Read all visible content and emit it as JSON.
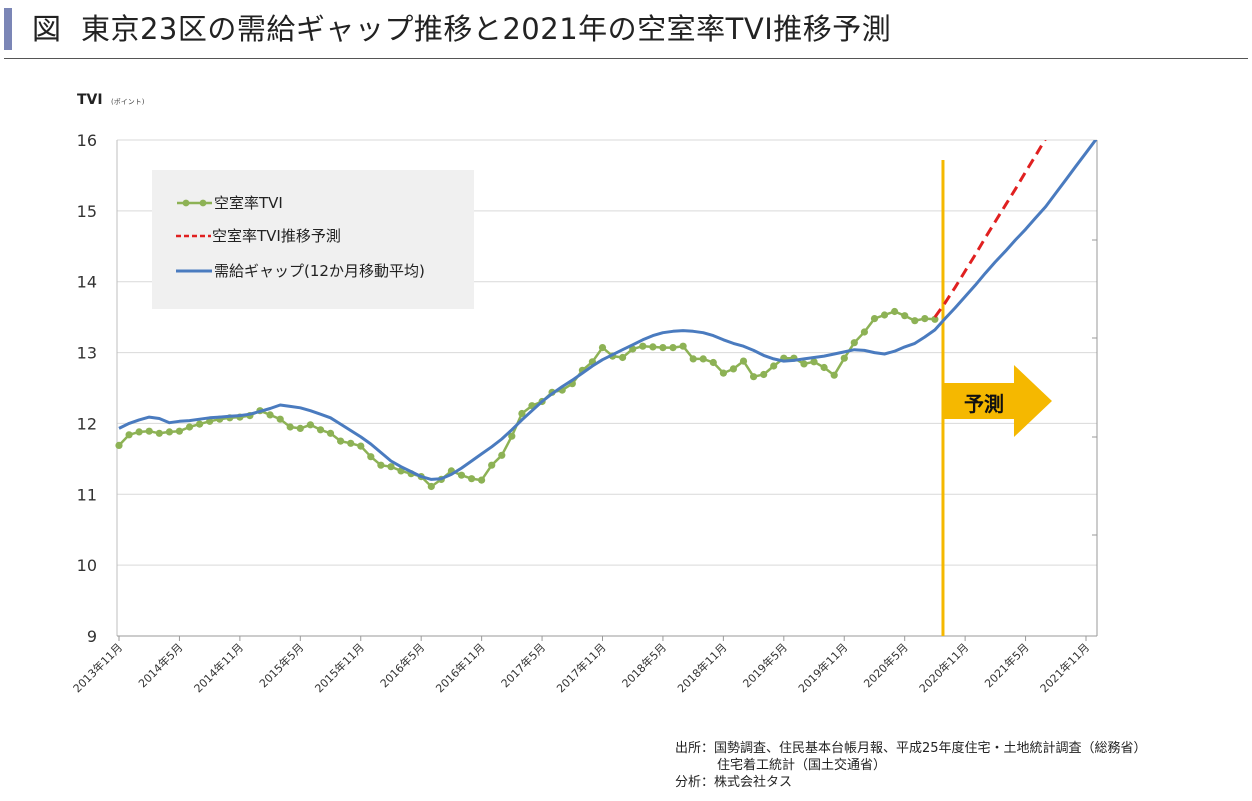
{
  "title": {
    "marker": "図",
    "text": "東京23区の需給ギャップ推移と2021年の空室率TVI推移予測"
  },
  "colors": {
    "tvi": "#8db255",
    "forecast": "#e02020",
    "gap": "#4a7bbf",
    "marker_line": "#f5b800",
    "arrow": "#f5b800",
    "legend_bg": "#f0f0f0",
    "grid": "#d9d9d9",
    "title_accent": "#7b86b6"
  },
  "chart_data": {
    "type": "line",
    "ylabel": "TVI",
    "ylabel_unit": "(ポイント)",
    "ylim": [
      9,
      16
    ],
    "y_ticks": [
      "16",
      "15",
      "14",
      "13",
      "12",
      "11",
      "10",
      "9"
    ],
    "x_ticks": [
      "2013年11月",
      "2014年5月",
      "2014年11月",
      "2015年5月",
      "2015年11月",
      "2016年5月",
      "2016年11月",
      "2017年5月",
      "2017年11月",
      "2018年5月",
      "2018年11月",
      "2019年5月",
      "2019年11月",
      "2020年5月",
      "2020年11月",
      "2021年5月",
      "2021年11月"
    ],
    "x_start": "2013年11月",
    "x_end": "2021年11月",
    "grid": "horizontal",
    "legend_position": "top-left",
    "forecast_start": "2020年9月",
    "forecast_label": "予測",
    "series": [
      {
        "name": "空室率TVI",
        "style": "line-with-markers",
        "values": [
          11.69,
          11.84,
          11.88,
          11.89,
          11.86,
          11.88,
          11.89,
          11.95,
          11.99,
          12.03,
          12.06,
          12.08,
          12.09,
          12.11,
          12.18,
          12.12,
          12.06,
          11.95,
          11.93,
          11.98,
          11.91,
          11.86,
          11.75,
          11.72,
          11.68,
          11.53,
          11.41,
          11.39,
          11.33,
          11.29,
          11.25,
          11.11,
          11.21,
          11.33,
          11.27,
          11.22,
          11.2,
          11.41,
          11.55,
          11.82,
          12.14,
          12.25,
          12.31,
          12.44,
          12.47,
          12.56,
          12.75,
          12.87,
          13.07,
          12.95,
          12.93,
          13.05,
          13.09,
          13.08,
          13.07,
          13.07,
          13.09,
          12.91,
          12.91,
          12.86,
          12.71,
          12.77,
          12.88,
          12.66,
          12.69,
          12.81,
          12.92,
          12.92,
          12.84,
          12.87,
          12.79,
          12.68,
          12.92,
          13.14,
          13.29,
          13.48,
          13.53,
          13.58,
          13.52,
          13.45,
          13.48,
          13.47
        ]
      },
      {
        "name": "空室率TVI推移予測",
        "style": "dashed",
        "values": [
          13.5,
          13.7,
          13.92,
          14.15,
          14.38,
          14.62,
          14.85,
          15.08,
          15.31,
          15.55,
          15.78,
          16.02,
          16.25,
          16.48,
          16.72
        ]
      },
      {
        "name": "需給ギャップ(12か月移動平均)",
        "style": "line",
        "values": [
          11.93,
          12.0,
          12.05,
          12.09,
          12.07,
          12.01,
          12.03,
          12.04,
          12.06,
          12.08,
          12.09,
          12.1,
          12.11,
          12.13,
          12.17,
          12.21,
          12.26,
          12.24,
          12.22,
          12.18,
          12.13,
          12.08,
          11.99,
          11.9,
          11.81,
          11.71,
          11.59,
          11.47,
          11.39,
          11.32,
          11.25,
          11.21,
          11.22,
          11.28,
          11.37,
          11.47,
          11.57,
          11.67,
          11.78,
          11.91,
          12.05,
          12.18,
          12.31,
          12.42,
          12.52,
          12.61,
          12.71,
          12.81,
          12.9,
          12.97,
          13.04,
          13.11,
          13.18,
          13.24,
          13.28,
          13.3,
          13.31,
          13.3,
          13.28,
          13.24,
          13.18,
          13.13,
          13.09,
          13.03,
          12.96,
          12.91,
          12.88,
          12.89,
          12.91,
          12.93,
          12.95,
          12.98,
          13.01,
          13.04,
          13.03,
          13.0,
          12.98,
          13.02,
          13.08,
          13.13,
          13.22,
          13.32,
          13.48,
          13.63,
          13.79,
          13.95,
          14.12,
          14.28,
          14.43,
          14.59,
          14.74,
          14.9,
          15.06,
          15.25,
          15.44,
          15.63,
          15.82,
          16.01
        ]
      }
    ]
  },
  "source": {
    "line1": "出所：国勢調査、住民基本台帳月報、平成25年度住宅・土地統計調査（総務省）",
    "line2": "住宅着工統計（国土交通省）",
    "line3": "分析：株式会社タス"
  }
}
